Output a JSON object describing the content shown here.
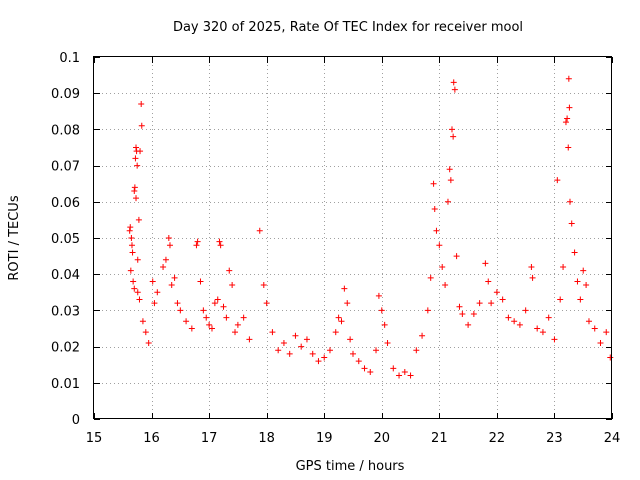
{
  "chart_data": {
    "type": "scatter",
    "title": "Day 320 of 2025, Rate Of TEC Index for receiver mool",
    "xlabel": "GPS time / hours",
    "ylabel": "ROTI / TECUs",
    "xlim": [
      15,
      24
    ],
    "ylim": [
      0,
      0.1
    ],
    "x_ticks": [
      15,
      16,
      17,
      18,
      19,
      20,
      21,
      22,
      23,
      24
    ],
    "x_tick_labels": [
      "15",
      "16",
      "17",
      "18",
      "19",
      "20",
      "21",
      "22",
      "23",
      "24"
    ],
    "y_ticks": [
      0,
      0.01,
      0.02,
      0.03,
      0.04,
      0.05,
      0.06,
      0.07,
      0.08,
      0.09,
      0.1
    ],
    "y_tick_labels": [
      "0",
      "0.01",
      "0.02",
      "0.03",
      "0.04",
      "0.05",
      "0.06",
      "0.07",
      "0.08",
      "0.09",
      "0.1"
    ],
    "grid": true,
    "marker": "+",
    "color": "#ff0000",
    "series": [
      {
        "name": "ROTI",
        "points": [
          [
            15.62,
            0.052
          ],
          [
            15.63,
            0.053
          ],
          [
            15.65,
            0.05
          ],
          [
            15.66,
            0.048
          ],
          [
            15.67,
            0.046
          ],
          [
            15.64,
            0.041
          ],
          [
            15.68,
            0.038
          ],
          [
            15.7,
            0.063
          ],
          [
            15.72,
            0.072
          ],
          [
            15.73,
            0.075
          ],
          [
            15.74,
            0.074
          ],
          [
            15.75,
            0.07
          ],
          [
            15.71,
            0.064
          ],
          [
            15.73,
            0.061
          ],
          [
            15.76,
            0.044
          ],
          [
            15.8,
            0.074
          ],
          [
            15.82,
            0.087
          ],
          [
            15.83,
            0.081
          ],
          [
            15.78,
            0.055
          ],
          [
            15.7,
            0.036
          ],
          [
            15.76,
            0.035
          ],
          [
            15.79,
            0.033
          ],
          [
            15.85,
            0.027
          ],
          [
            15.9,
            0.024
          ],
          [
            15.95,
            0.021
          ],
          [
            16.02,
            0.038
          ],
          [
            16.05,
            0.032
          ],
          [
            16.1,
            0.035
          ],
          [
            16.2,
            0.042
          ],
          [
            16.25,
            0.044
          ],
          [
            16.3,
            0.05
          ],
          [
            16.32,
            0.048
          ],
          [
            16.35,
            0.037
          ],
          [
            16.4,
            0.039
          ],
          [
            16.45,
            0.032
          ],
          [
            16.5,
            0.03
          ],
          [
            16.6,
            0.027
          ],
          [
            16.7,
            0.025
          ],
          [
            16.78,
            0.048
          ],
          [
            16.8,
            0.049
          ],
          [
            16.85,
            0.038
          ],
          [
            16.9,
            0.03
          ],
          [
            16.95,
            0.028
          ],
          [
            17.0,
            0.026
          ],
          [
            17.05,
            0.025
          ],
          [
            17.1,
            0.032
          ],
          [
            17.15,
            0.033
          ],
          [
            17.18,
            0.049
          ],
          [
            17.2,
            0.048
          ],
          [
            17.25,
            0.031
          ],
          [
            17.3,
            0.028
          ],
          [
            17.35,
            0.041
          ],
          [
            17.4,
            0.037
          ],
          [
            17.45,
            0.024
          ],
          [
            17.5,
            0.026
          ],
          [
            17.6,
            0.028
          ],
          [
            17.7,
            0.022
          ],
          [
            17.88,
            0.052
          ],
          [
            17.95,
            0.037
          ],
          [
            18.0,
            0.032
          ],
          [
            18.1,
            0.024
          ],
          [
            18.2,
            0.019
          ],
          [
            18.3,
            0.021
          ],
          [
            18.4,
            0.018
          ],
          [
            18.5,
            0.023
          ],
          [
            18.6,
            0.02
          ],
          [
            18.7,
            0.022
          ],
          [
            18.8,
            0.018
          ],
          [
            18.9,
            0.016
          ],
          [
            19.0,
            0.017
          ],
          [
            19.1,
            0.019
          ],
          [
            19.2,
            0.024
          ],
          [
            19.25,
            0.028
          ],
          [
            19.3,
            0.027
          ],
          [
            19.35,
            0.036
          ],
          [
            19.4,
            0.032
          ],
          [
            19.45,
            0.022
          ],
          [
            19.5,
            0.018
          ],
          [
            19.6,
            0.016
          ],
          [
            19.7,
            0.014
          ],
          [
            19.8,
            0.013
          ],
          [
            19.9,
            0.019
          ],
          [
            19.95,
            0.034
          ],
          [
            20.0,
            0.03
          ],
          [
            20.05,
            0.026
          ],
          [
            20.1,
            0.021
          ],
          [
            20.2,
            0.014
          ],
          [
            20.3,
            0.012
          ],
          [
            20.4,
            0.013
          ],
          [
            20.5,
            0.012
          ],
          [
            20.6,
            0.019
          ],
          [
            20.7,
            0.023
          ],
          [
            20.8,
            0.03
          ],
          [
            20.85,
            0.039
          ],
          [
            20.9,
            0.065
          ],
          [
            20.92,
            0.058
          ],
          [
            20.95,
            0.052
          ],
          [
            21.0,
            0.048
          ],
          [
            21.05,
            0.042
          ],
          [
            21.1,
            0.037
          ],
          [
            21.15,
            0.06
          ],
          [
            21.18,
            0.069
          ],
          [
            21.2,
            0.066
          ],
          [
            21.22,
            0.08
          ],
          [
            21.24,
            0.078
          ],
          [
            21.25,
            0.093
          ],
          [
            21.27,
            0.091
          ],
          [
            21.3,
            0.045
          ],
          [
            21.35,
            0.031
          ],
          [
            21.4,
            0.029
          ],
          [
            21.5,
            0.026
          ],
          [
            21.6,
            0.029
          ],
          [
            21.7,
            0.032
          ],
          [
            21.8,
            0.043
          ],
          [
            21.85,
            0.038
          ],
          [
            21.9,
            0.032
          ],
          [
            22.0,
            0.035
          ],
          [
            22.1,
            0.033
          ],
          [
            22.2,
            0.028
          ],
          [
            22.3,
            0.027
          ],
          [
            22.4,
            0.026
          ],
          [
            22.5,
            0.03
          ],
          [
            22.6,
            0.042
          ],
          [
            22.62,
            0.039
          ],
          [
            22.7,
            0.025
          ],
          [
            22.8,
            0.024
          ],
          [
            22.9,
            0.028
          ],
          [
            23.0,
            0.022
          ],
          [
            23.05,
            0.066
          ],
          [
            23.1,
            0.033
          ],
          [
            23.15,
            0.042
          ],
          [
            23.2,
            0.082
          ],
          [
            23.22,
            0.083
          ],
          [
            23.24,
            0.075
          ],
          [
            23.25,
            0.094
          ],
          [
            23.26,
            0.086
          ],
          [
            23.27,
            0.06
          ],
          [
            23.3,
            0.054
          ],
          [
            23.35,
            0.046
          ],
          [
            23.4,
            0.038
          ],
          [
            23.45,
            0.033
          ],
          [
            23.5,
            0.041
          ],
          [
            23.55,
            0.037
          ],
          [
            23.6,
            0.027
          ],
          [
            23.7,
            0.025
          ],
          [
            23.8,
            0.021
          ],
          [
            23.9,
            0.024
          ],
          [
            23.97,
            0.017
          ]
        ]
      }
    ]
  }
}
